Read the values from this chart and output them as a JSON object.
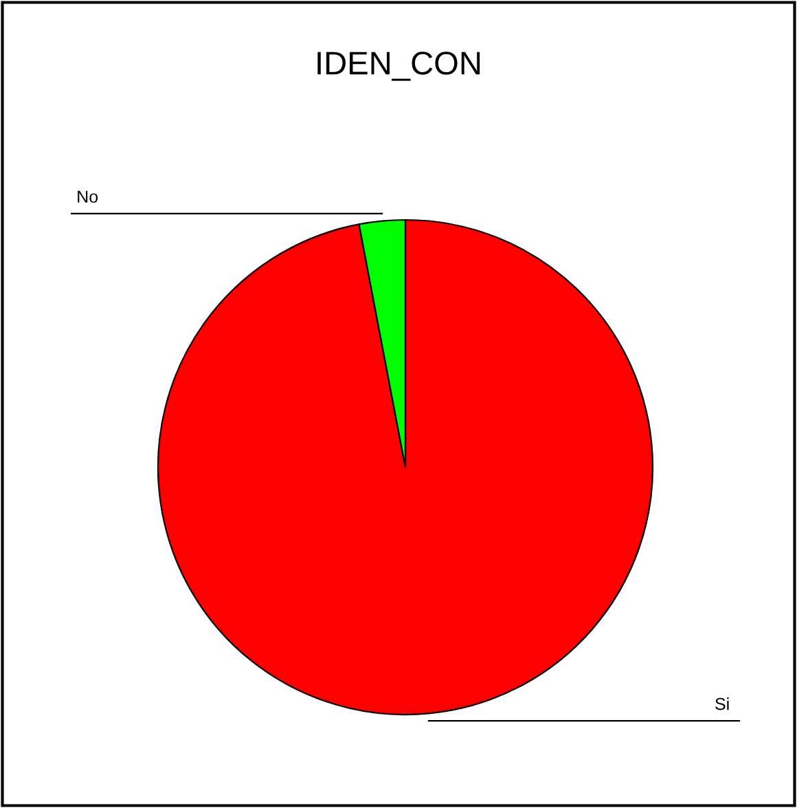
{
  "chart_data": {
    "type": "pie",
    "title": "IDEN_CON",
    "categories": [
      "Si",
      "No"
    ],
    "values": [
      97,
      3
    ],
    "colors": [
      "#ff0000",
      "#00ff00"
    ],
    "legend": false
  }
}
